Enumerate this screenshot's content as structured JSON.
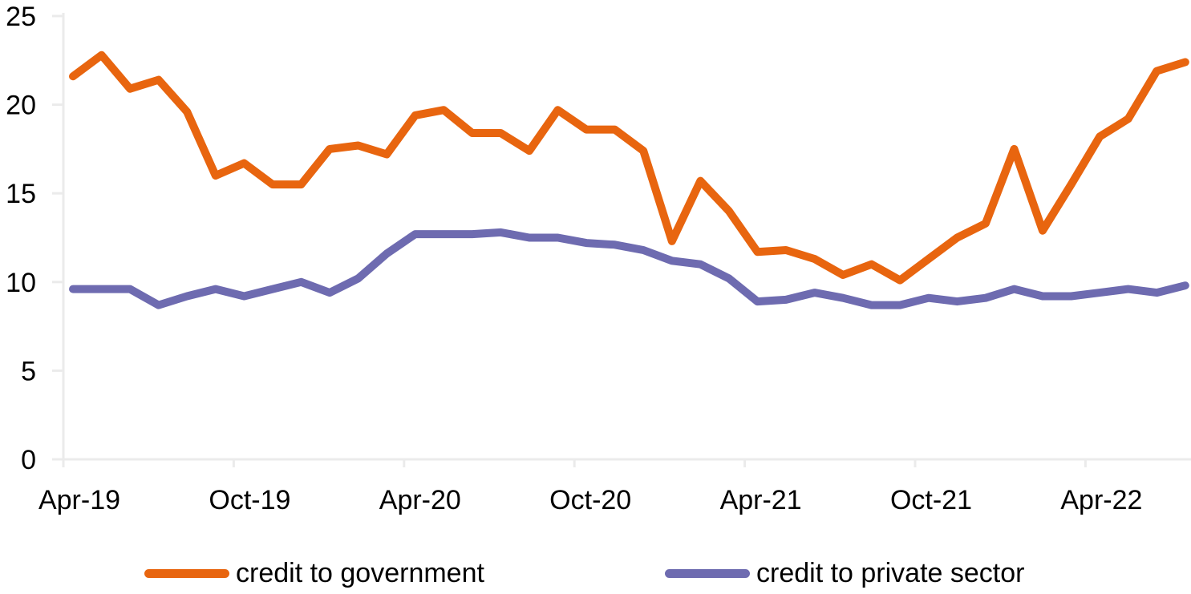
{
  "chart_data": {
    "type": "line",
    "title": "",
    "xlabel": "",
    "ylabel": "",
    "ylim": [
      0,
      25
    ],
    "yticks": [
      0,
      5,
      10,
      15,
      20,
      25
    ],
    "grid": false,
    "legend_position": "bottom",
    "x": [
      "Apr-19",
      "May-19",
      "Jun-19",
      "Jul-19",
      "Aug-19",
      "Sep-19",
      "Oct-19",
      "Nov-19",
      "Dec-19",
      "Jan-20",
      "Feb-20",
      "Mar-20",
      "Apr-20",
      "May-20",
      "Jun-20",
      "Jul-20",
      "Aug-20",
      "Sep-20",
      "Oct-20",
      "Nov-20",
      "Dec-20",
      "Jan-21",
      "Feb-21",
      "Mar-21",
      "Apr-21",
      "May-21",
      "Jun-21",
      "Jul-21",
      "Aug-21",
      "Sep-21",
      "Oct-21",
      "Nov-21",
      "Dec-21",
      "Jan-22",
      "Feb-22",
      "Mar-22",
      "Apr-22",
      "May-22",
      "Jun-22",
      "Jul-22"
    ],
    "xtick_labels": [
      "Apr-19",
      "Oct-19",
      "Apr-20",
      "Oct-20",
      "Apr-21",
      "Oct-21",
      "Apr-22"
    ],
    "series": [
      {
        "name": "credit to government",
        "color": "#E8650F",
        "values": [
          21.6,
          22.8,
          20.9,
          21.4,
          19.6,
          16.0,
          16.7,
          15.5,
          15.5,
          17.5,
          17.7,
          17.2,
          19.4,
          19.7,
          18.4,
          18.4,
          17.4,
          19.7,
          18.6,
          18.6,
          17.4,
          12.3,
          15.7,
          14.0,
          11.7,
          11.8,
          11.3,
          10.4,
          11.0,
          10.1,
          11.3,
          12.5,
          13.3,
          17.5,
          12.9,
          15.5,
          18.2,
          19.2,
          21.9,
          22.4
        ]
      },
      {
        "name": "credit to private sector",
        "color": "#6E6BB0",
        "values": [
          9.6,
          9.6,
          9.6,
          8.7,
          9.2,
          9.6,
          9.2,
          9.6,
          10.0,
          9.4,
          10.2,
          11.6,
          12.7,
          12.7,
          12.7,
          12.8,
          12.5,
          12.5,
          12.2,
          12.1,
          11.8,
          11.2,
          11.0,
          10.2,
          8.9,
          9.0,
          9.4,
          9.1,
          8.7,
          8.7,
          9.1,
          8.9,
          9.1,
          9.6,
          9.2,
          9.2,
          9.4,
          9.6,
          9.4,
          9.8
        ]
      }
    ]
  },
  "colors": {
    "axis": "#EBEBEB",
    "text": "#000000"
  }
}
